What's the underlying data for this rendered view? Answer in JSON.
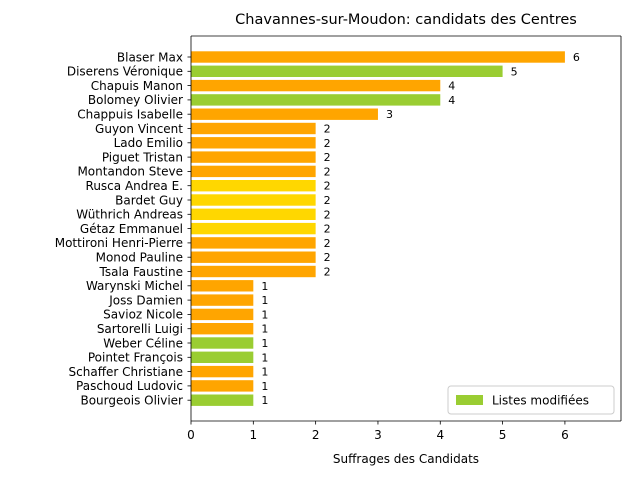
{
  "chart_data": {
    "type": "bar",
    "orientation": "horizontal",
    "title": "Chavannes-sur-Moudon: candidats des Centres",
    "xlabel": "Suffrages des Candidats",
    "ylabel": "",
    "xlim": [
      0,
      6.9
    ],
    "xticks": [
      0,
      1,
      2,
      3,
      4,
      5,
      6
    ],
    "grid": false,
    "legend": {
      "position": "lower-right",
      "label": "Listes modifiées",
      "color": "#9acd32"
    },
    "colors": {
      "orange": "#ffa500",
      "green": "#9acd32",
      "gold": "#ffd700"
    },
    "categories": [
      "Blaser Max",
      "Diserens Véronique",
      "Chapuis Manon",
      "Bolomey Olivier",
      "Chappuis Isabelle",
      "Guyon Vincent",
      "Lado Emilio",
      "Piguet Tristan",
      "Montandon Steve",
      "Rusca Andrea E.",
      "Bardet Guy",
      "Wüthrich Andreas",
      "Gétaz Emmanuel",
      "Mottironi Henri-Pierre",
      "Monod Pauline",
      "Tsala Faustine",
      "Warynski Michel",
      "Joss Damien",
      "Savioz Nicole",
      "Sartorelli Luigi",
      "Weber Céline",
      "Pointet François",
      "Schaffer Christiane",
      "Paschoud Ludovic",
      "Bourgeois Olivier"
    ],
    "values": [
      6,
      5,
      4,
      4,
      3,
      2,
      2,
      2,
      2,
      2,
      2,
      2,
      2,
      2,
      2,
      2,
      1,
      1,
      1,
      1,
      1,
      1,
      1,
      1,
      1
    ],
    "bar_colors": [
      "orange",
      "green",
      "orange",
      "green",
      "orange",
      "orange",
      "orange",
      "orange",
      "orange",
      "gold",
      "gold",
      "gold",
      "gold",
      "orange",
      "orange",
      "orange",
      "orange",
      "orange",
      "orange",
      "orange",
      "green",
      "green",
      "orange",
      "orange",
      "green"
    ]
  }
}
